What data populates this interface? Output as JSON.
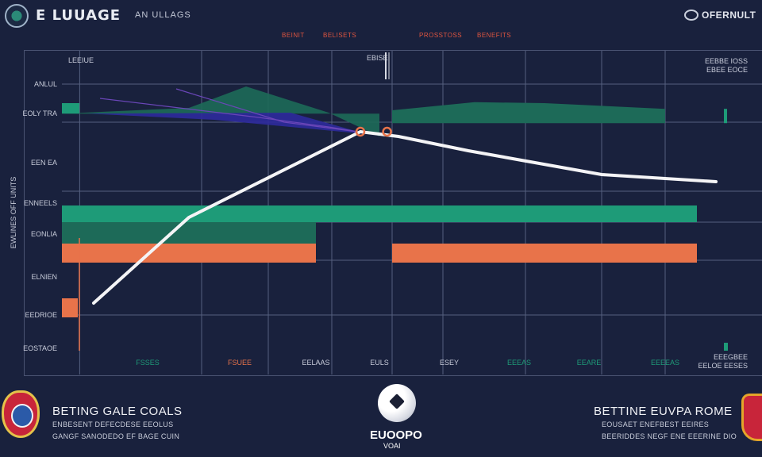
{
  "header": {
    "app_title": "E LUUAGE",
    "subtitle": "AN ULLAGS",
    "right_title": "OFERNULT",
    "tabs": [
      "BEINIT",
      "BELISETS",
      "PROSSTOSS",
      "BENEFITS"
    ]
  },
  "colors": {
    "background": "#19213d",
    "grid": "#55607f",
    "green": "#1e9b78",
    "dark_green": "#1d6a58",
    "orange": "#e8734a",
    "navy_purple": "#2e2a9c",
    "trend_line": "#f4f4f6"
  },
  "chart_data": {
    "type": "area",
    "y_axis_title": "EWLINES OFF UNITS",
    "y_tick_labels": [
      "ANLUL",
      "EOLY TRA",
      "EEN EA",
      "ENNEELS",
      "EONLIA",
      "ELNIEN",
      "EEDRIOE",
      "EOSTAOE"
    ],
    "x_tick_labels": [
      "FSSES",
      "FSUEE",
      "EELAAS",
      "EULS",
      "ESEY",
      "EEEAS",
      "EEARE",
      "EEEEAS"
    ],
    "legend": {
      "top_left": "LEEIUE",
      "center": "EBISE",
      "top_right": [
        "EEBBE IOSS",
        "EBEE EOCE"
      ],
      "bottom_right": [
        "EEEGBEE",
        "EELOE EESES"
      ]
    },
    "trend_line": {
      "x": [
        0.5,
        2.0,
        4.7,
        5.3,
        6.4,
        8.5,
        10.3
      ],
      "y": [
        1.0,
        2.8,
        4.6,
        4.5,
        4.2,
        3.7,
        3.55
      ]
    },
    "bands": [
      {
        "name": "",
        "color": "green",
        "x_start": 0,
        "x_end": 10,
        "y_bottom": 2.7,
        "y_top": 3.05
      },
      {
        "name": "",
        "color": "dark_green",
        "x_start": 0,
        "x_end": 4.0,
        "y_bottom": 2.25,
        "y_top": 2.7
      },
      {
        "name": "",
        "color": "orange",
        "x_start": 0,
        "x_end": 4.0,
        "y_bottom": 1.85,
        "y_top": 2.25
      },
      {
        "name": "",
        "color": "orange",
        "x_start": 5.2,
        "x_end": 10,
        "y_bottom": 1.85,
        "y_top": 2.25
      },
      {
        "name": "",
        "color": "orange",
        "x_start": 0,
        "x_end": 0.25,
        "y_bottom": 0.7,
        "y_top": 1.1
      }
    ],
    "upper_area": {
      "x": [
        0,
        2.0,
        2.9,
        4.2,
        5.0
      ],
      "y_top": [
        4.98,
        5.1,
        5.55,
        5.0,
        4.5
      ],
      "y_bottom": [
        4.98,
        4.98,
        4.98,
        4.98,
        4.98
      ]
    },
    "right_area": {
      "x": [
        5.2,
        6.5,
        7.6,
        9.5
      ],
      "y_top": [
        5.05,
        5.22,
        5.2,
        5.08
      ],
      "y_bottom": [
        4.78,
        4.78,
        4.78,
        4.78
      ]
    },
    "marker_points": [
      {
        "x": 4.7,
        "y": 4.6
      },
      {
        "x": 5.12,
        "y": 4.6
      }
    ],
    "xlim": [
      0,
      10.5
    ],
    "ylim": [
      0,
      6
    ],
    "grid": true
  },
  "footer": {
    "left_heading": "BETING GALE COALS",
    "left_lines": [
      "ENBESENT DEFECDESE EEOLUS",
      "GANGF SANODEDO EF BAGE CUIN"
    ],
    "center_label": "EUOOPO",
    "center_sub": "VOAI",
    "right_heading": "BETTINE EUVPA ROME",
    "right_lines": [
      "EOUSAET ENEFBEST EEIRES",
      "BEERIDDES NEGF ENE EEERINE DIO"
    ]
  }
}
